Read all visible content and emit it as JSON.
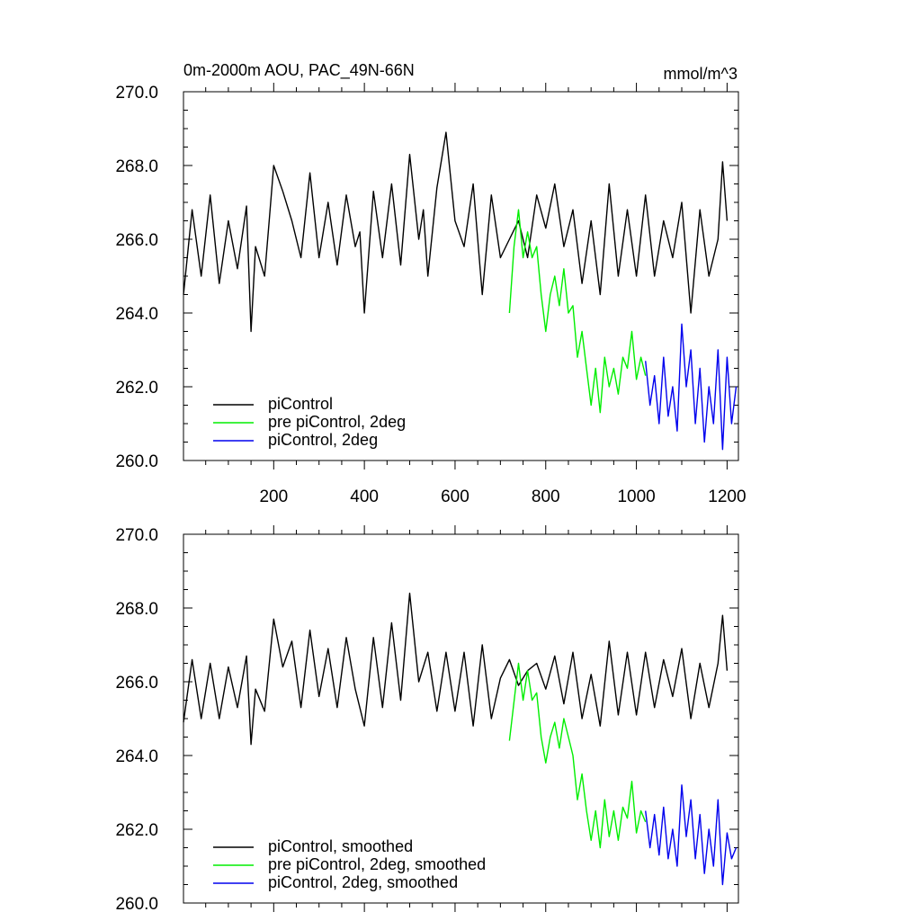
{
  "chart_data": [
    {
      "type": "line",
      "title": "0m-2000m AOU, PAC_49N-66N",
      "units": "mmol/m^3",
      "xlim": [
        1,
        1225
      ],
      "ylim": [
        260.0,
        270.0
      ],
      "xticks": [
        200,
        400,
        600,
        800,
        1000,
        1200
      ],
      "xtick_labels": [
        "200",
        "400",
        "600",
        "800",
        "1000",
        "1200"
      ],
      "yticks": [
        260.0,
        262.0,
        264.0,
        266.0,
        268.0,
        270.0
      ],
      "ytick_labels": [
        "260.0",
        "262.0",
        "264.0",
        "266.0",
        "268.0",
        "270.0"
      ],
      "legend_position": "bottom-left",
      "series": [
        {
          "name": "piControl",
          "color": "#000000",
          "x": [
            1,
            20,
            40,
            60,
            80,
            100,
            120,
            140,
            150,
            160,
            180,
            190,
            200,
            220,
            240,
            260,
            280,
            300,
            320,
            340,
            360,
            380,
            390,
            400,
            420,
            440,
            460,
            480,
            500,
            520,
            530,
            540,
            560,
            580,
            600,
            620,
            640,
            660,
            680,
            700,
            720,
            740,
            760,
            780,
            800,
            820,
            840,
            860,
            880,
            900,
            920,
            940,
            960,
            980,
            1000,
            1020,
            1040,
            1060,
            1080,
            1100,
            1120,
            1140,
            1160,
            1180,
            1190,
            1200
          ],
          "values": [
            264.5,
            266.8,
            265.0,
            267.2,
            264.8,
            266.5,
            265.2,
            266.9,
            263.5,
            265.8,
            265.0,
            266.5,
            268.0,
            267.3,
            266.5,
            265.5,
            267.8,
            265.5,
            267.0,
            265.3,
            267.2,
            265.8,
            266.2,
            264.0,
            267.3,
            265.5,
            267.5,
            265.3,
            268.3,
            266.0,
            266.8,
            265.0,
            267.4,
            268.9,
            266.5,
            265.8,
            267.5,
            264.5,
            267.2,
            265.5,
            266.0,
            266.5,
            265.5,
            267.2,
            266.3,
            267.5,
            265.8,
            266.8,
            264.8,
            266.5,
            264.5,
            267.5,
            265.0,
            266.8,
            265.0,
            267.2,
            265.0,
            266.5,
            265.5,
            267.0,
            264.0,
            266.8,
            265.0,
            266.0,
            268.1,
            266.5
          ]
        },
        {
          "name": "pre piControl, 2deg",
          "color": "#00ee00",
          "x": [
            720,
            730,
            740,
            750,
            760,
            770,
            780,
            790,
            800,
            810,
            820,
            830,
            840,
            850,
            860,
            870,
            880,
            890,
            900,
            910,
            920,
            930,
            940,
            950,
            960,
            970,
            980,
            990,
            1000,
            1010,
            1020
          ],
          "values": [
            264.0,
            265.8,
            266.8,
            265.5,
            266.2,
            265.5,
            265.8,
            264.5,
            263.5,
            264.5,
            265.0,
            264.2,
            265.2,
            264.0,
            264.2,
            262.8,
            263.5,
            262.5,
            261.5,
            262.5,
            261.3,
            262.8,
            262.0,
            262.5,
            261.8,
            262.8,
            262.5,
            263.5,
            262.2,
            262.8,
            262.3
          ]
        },
        {
          "name": "piControl, 2deg",
          "color": "#0000ee",
          "x": [
            1020,
            1030,
            1040,
            1050,
            1060,
            1070,
            1080,
            1090,
            1100,
            1110,
            1120,
            1130,
            1140,
            1150,
            1160,
            1170,
            1180,
            1190,
            1200,
            1210,
            1220
          ],
          "values": [
            262.7,
            261.5,
            262.3,
            261.0,
            262.8,
            261.2,
            262.0,
            260.8,
            263.7,
            262.0,
            263.0,
            261.0,
            262.5,
            260.5,
            262.0,
            261.0,
            263.0,
            260.3,
            262.8,
            261.0,
            262.0
          ]
        }
      ]
    },
    {
      "type": "line",
      "xlim": [
        1,
        1225
      ],
      "ylim": [
        260.0,
        270.0
      ],
      "xticks": [
        200,
        400,
        600,
        800,
        1000,
        1200
      ],
      "yticks": [
        260.0,
        262.0,
        264.0,
        266.0,
        268.0,
        270.0
      ],
      "ytick_labels": [
        "260.0",
        "262.0",
        "264.0",
        "266.0",
        "268.0",
        "270.0"
      ],
      "legend_position": "bottom-left",
      "series": [
        {
          "name": "piControl, smoothed",
          "color": "#000000",
          "x": [
            1,
            20,
            40,
            60,
            80,
            100,
            120,
            140,
            150,
            160,
            180,
            200,
            220,
            240,
            260,
            280,
            300,
            320,
            340,
            360,
            380,
            400,
            420,
            440,
            460,
            480,
            500,
            520,
            540,
            560,
            580,
            600,
            620,
            640,
            660,
            680,
            700,
            720,
            740,
            760,
            780,
            800,
            820,
            840,
            860,
            880,
            900,
            920,
            940,
            960,
            980,
            1000,
            1020,
            1040,
            1060,
            1080,
            1100,
            1120,
            1140,
            1160,
            1180,
            1190,
            1200
          ],
          "values": [
            264.9,
            266.6,
            265.0,
            266.5,
            265.0,
            266.4,
            265.3,
            266.7,
            264.3,
            265.8,
            265.2,
            267.7,
            266.4,
            267.1,
            265.3,
            267.4,
            265.6,
            266.9,
            265.3,
            267.2,
            265.8,
            264.8,
            267.2,
            265.3,
            267.6,
            265.5,
            268.4,
            266.0,
            266.8,
            265.2,
            266.8,
            265.2,
            266.8,
            264.8,
            267.0,
            265.0,
            266.1,
            266.6,
            265.9,
            266.3,
            266.5,
            265.8,
            266.7,
            265.4,
            266.8,
            265.0,
            266.2,
            264.8,
            267.1,
            265.1,
            266.8,
            265.1,
            266.8,
            265.3,
            266.6,
            265.6,
            266.9,
            265.0,
            266.5,
            265.3,
            266.5,
            267.8,
            266.3
          ]
        },
        {
          "name": "pre piControl, 2deg, smoothed",
          "color": "#00ee00",
          "x": [
            720,
            740,
            750,
            760,
            770,
            780,
            790,
            800,
            810,
            820,
            830,
            840,
            850,
            860,
            870,
            880,
            890,
            900,
            910,
            920,
            930,
            940,
            950,
            960,
            970,
            980,
            990,
            1000,
            1010,
            1020
          ],
          "values": [
            264.4,
            266.5,
            265.5,
            266.3,
            265.5,
            265.7,
            264.5,
            263.8,
            264.5,
            264.9,
            264.2,
            265.0,
            264.5,
            264.0,
            262.8,
            263.5,
            262.5,
            261.7,
            262.5,
            261.5,
            262.8,
            261.8,
            262.5,
            261.7,
            262.6,
            262.3,
            263.3,
            261.9,
            262.5,
            262.2
          ]
        },
        {
          "name": "piControl, 2deg, smoothed",
          "color": "#0000ee",
          "x": [
            1020,
            1030,
            1040,
            1050,
            1060,
            1070,
            1080,
            1090,
            1100,
            1110,
            1120,
            1130,
            1140,
            1150,
            1160,
            1170,
            1180,
            1190,
            1200,
            1210,
            1220
          ],
          "values": [
            262.5,
            261.5,
            262.4,
            261.3,
            262.6,
            261.2,
            262.0,
            261.0,
            263.2,
            261.8,
            262.8,
            261.2,
            262.4,
            260.8,
            262.0,
            261.0,
            262.8,
            260.5,
            261.9,
            261.2,
            261.5
          ]
        }
      ]
    }
  ]
}
